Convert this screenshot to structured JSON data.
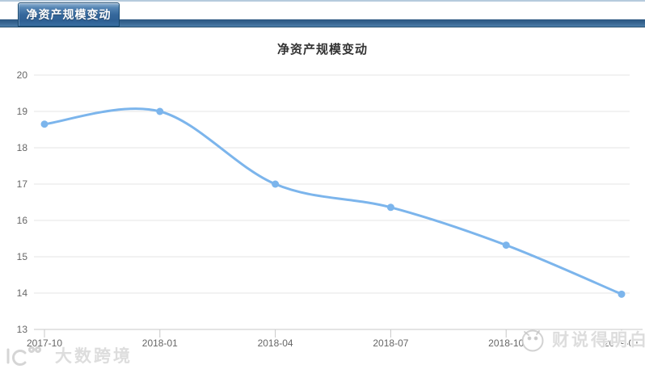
{
  "tab": {
    "label": "净资产规模变动"
  },
  "chart_data": {
    "type": "line",
    "title": "净资产规模变动",
    "categories": [
      "2017-10",
      "2018-01",
      "2018-04",
      "2018-07",
      "2018-10",
      "2019-01"
    ],
    "values": [
      18.65,
      19.0,
      17.0,
      16.36,
      15.32,
      13.97
    ],
    "xlabel": "",
    "ylabel": "",
    "ylim": [
      13,
      20
    ],
    "y_ticks": [
      13,
      14,
      15,
      16,
      17,
      18,
      19,
      20
    ],
    "grid": "horizontal-only",
    "legend": "none",
    "line_color": "#7cb5ec",
    "marker": "circle"
  },
  "watermarks": {
    "left_text": "大数跨境",
    "right_text": "财说得明白"
  },
  "colors": {
    "tab_border": "#17486f",
    "tab_blue": "#35689c",
    "band_blue": "#3a6893",
    "series_blue": "#7cb5ec",
    "gridline": "#e6e6e6",
    "axis_line": "#c8c8c8",
    "label_gray": "#666666",
    "title_gray": "#333333",
    "watermark_gray": "#c8c8c8"
  }
}
